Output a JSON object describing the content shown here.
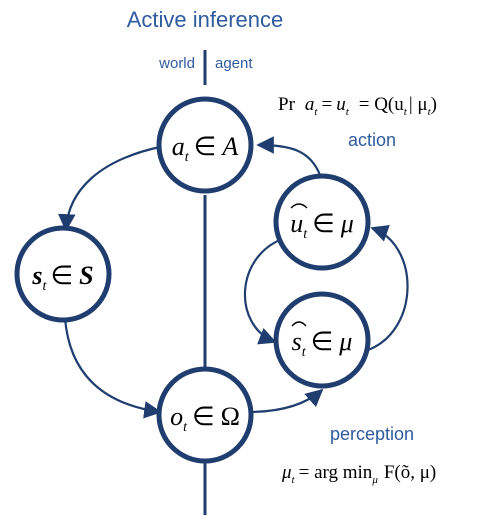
{
  "title": "Active inference",
  "labels": {
    "world": "world",
    "agent": "agent",
    "action": "action",
    "perception": "perception"
  },
  "nodes": {
    "action_node": {
      "base": "a",
      "sub": "t",
      "rel": "∈",
      "set": "A"
    },
    "state_node": {
      "base": "s",
      "sub": "t",
      "rel": "∈",
      "set": "S"
    },
    "observation_node": {
      "base": "o",
      "sub": "t",
      "rel": "∈",
      "set": "Ω"
    },
    "control_belief_node": {
      "base": "u",
      "sub": "t",
      "rel": "∈",
      "set": "μ"
    },
    "state_belief_node": {
      "base": "s",
      "sub": "t",
      "rel": "∈",
      "set": "μ"
    }
  },
  "equations": {
    "action": {
      "pr": "Pr",
      "lhs_a": "a",
      "lhs_a_sub": "t",
      "eq1": "=",
      "lhs_u": "u",
      "lhs_u_sub": "t",
      "eq2": "= Q(u",
      "q_sub": "t",
      "bar": "| μ",
      "mu_sub": "t",
      "close": ")"
    },
    "perception": {
      "mu": "μ",
      "mu_sub": "t",
      "eq": "= arg min",
      "argmin_sub": "μ",
      "func": "F(õ, μ)"
    }
  },
  "colors": {
    "accent": "#2f5b9f",
    "stroke": "#1f3d6e"
  }
}
